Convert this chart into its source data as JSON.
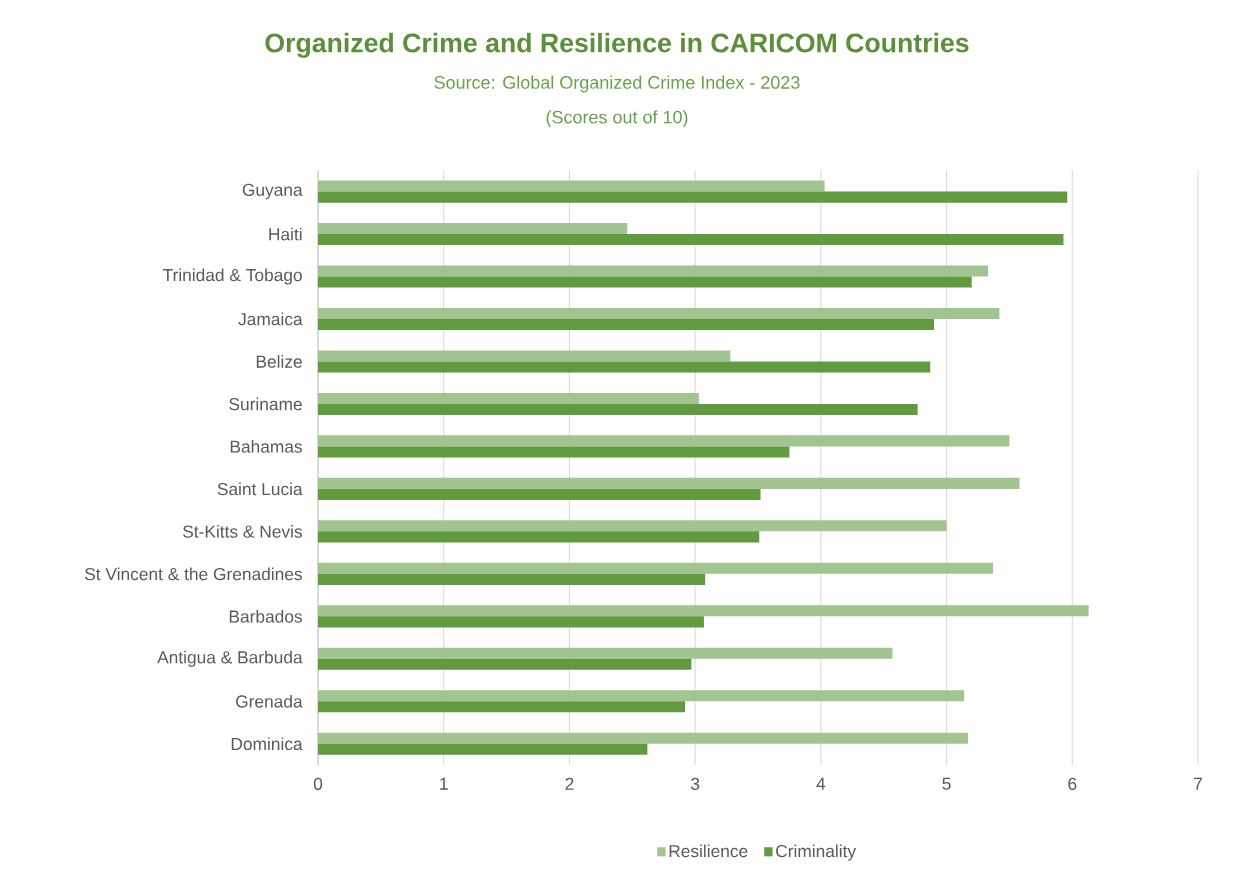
{
  "chart_data": {
    "type": "bar",
    "orientation": "horizontal",
    "title": "Organized Crime and Resilience in CARICOM Countries",
    "subtitle": "Source: Global Organized Crime Index - 2023",
    "annotations": [
      "(Scores out of 10)"
    ],
    "categories": [
      "Guyana",
      "Haiti",
      "Trinidad & Tobago",
      "Jamaica",
      "Belize",
      "Suriname",
      "Bahamas",
      "Saint Lucia",
      "St-Kitts & Nevis",
      "St Vincent & the Grenadines",
      "Barbados",
      "Antigua & Barbuda",
      "Grenada",
      "Dominica"
    ],
    "series": [
      {
        "name": "Resilience",
        "color": "#a2c490",
        "values": [
          4.03,
          2.46,
          5.33,
          5.42,
          3.28,
          3.03,
          5.5,
          5.58,
          5.0,
          5.37,
          6.13,
          4.57,
          5.14,
          5.17
        ]
      },
      {
        "name": "Criminality",
        "color": "#629a3f",
        "values": [
          5.96,
          5.93,
          5.2,
          4.9,
          4.87,
          4.77,
          3.75,
          3.52,
          3.51,
          3.08,
          3.07,
          2.97,
          2.92,
          2.62
        ]
      }
    ],
    "xlim": [
      0,
      7
    ],
    "xticks": [
      0,
      1,
      2,
      3,
      4,
      5,
      6,
      7
    ],
    "grid": "x",
    "legend": "bottom"
  }
}
